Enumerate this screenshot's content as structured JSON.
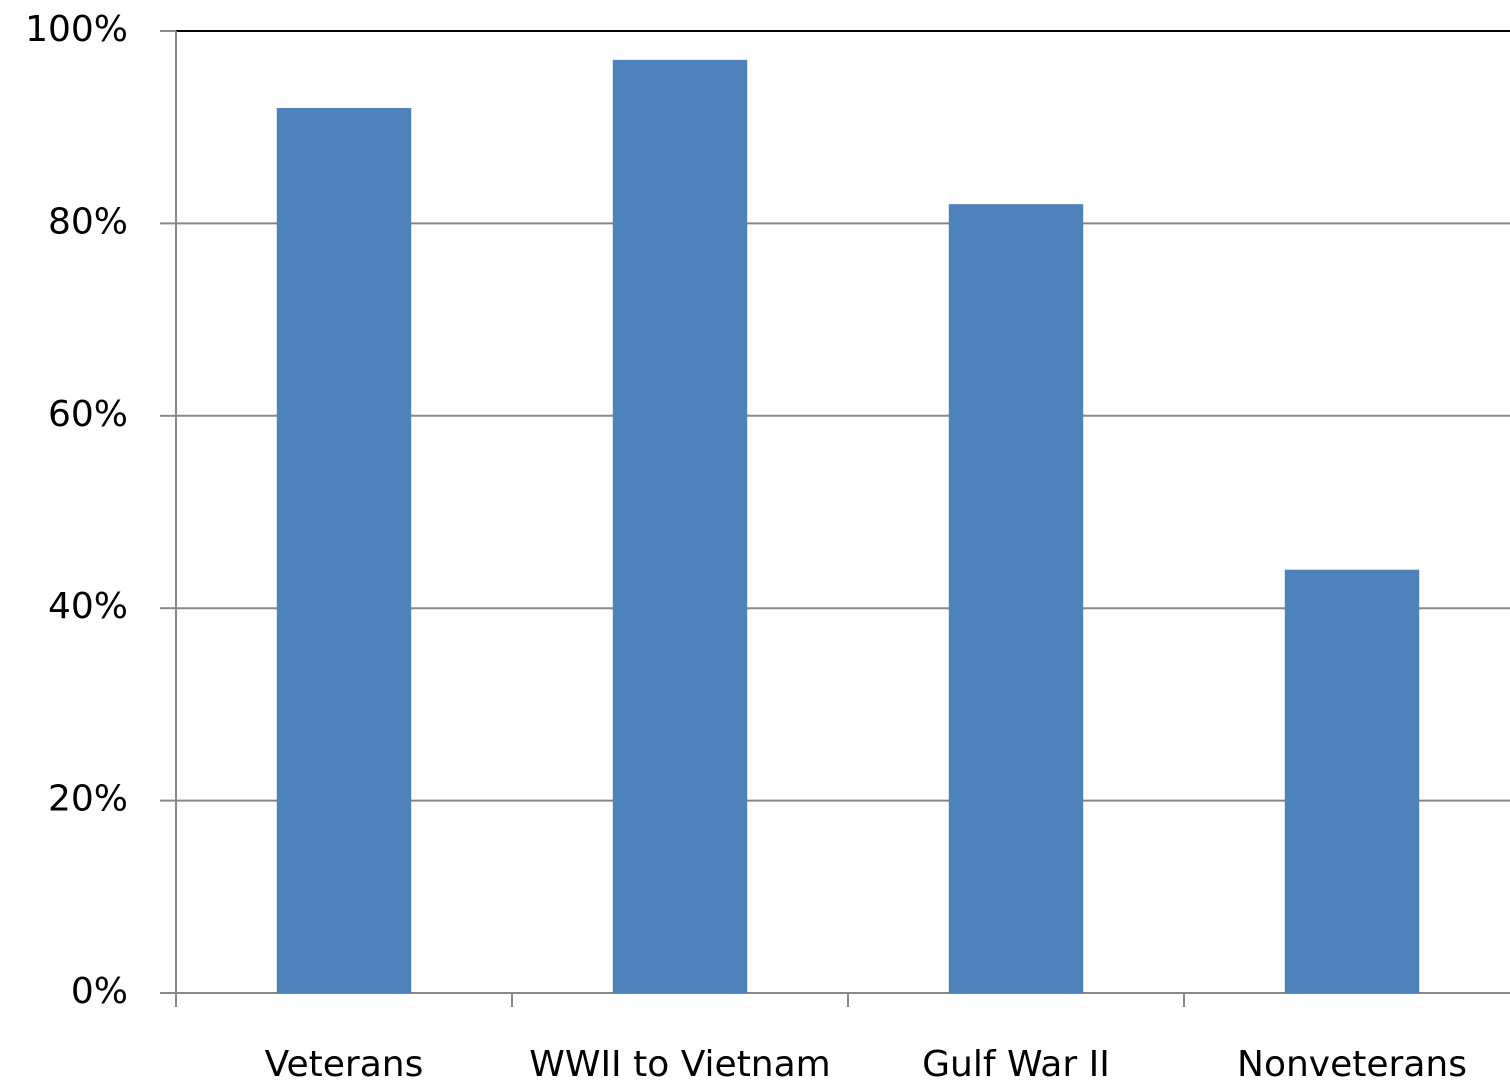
{
  "chart_data": {
    "type": "bar",
    "categories": [
      "Veterans",
      "WWII to Vietnam",
      "Gulf War II",
      "Nonveterans"
    ],
    "values": [
      92,
      97,
      82,
      44
    ],
    "color": "#4f81bd",
    "ylim": [
      0,
      100
    ],
    "yticks": [
      {
        "value": 0,
        "label": "0%"
      },
      {
        "value": 20,
        "label": "20%"
      },
      {
        "value": 40,
        "label": "40%"
      },
      {
        "value": 60,
        "label": "60%"
      },
      {
        "value": 80,
        "label": "80%"
      },
      {
        "value": 100,
        "label": "100%"
      }
    ],
    "grid": true
  }
}
